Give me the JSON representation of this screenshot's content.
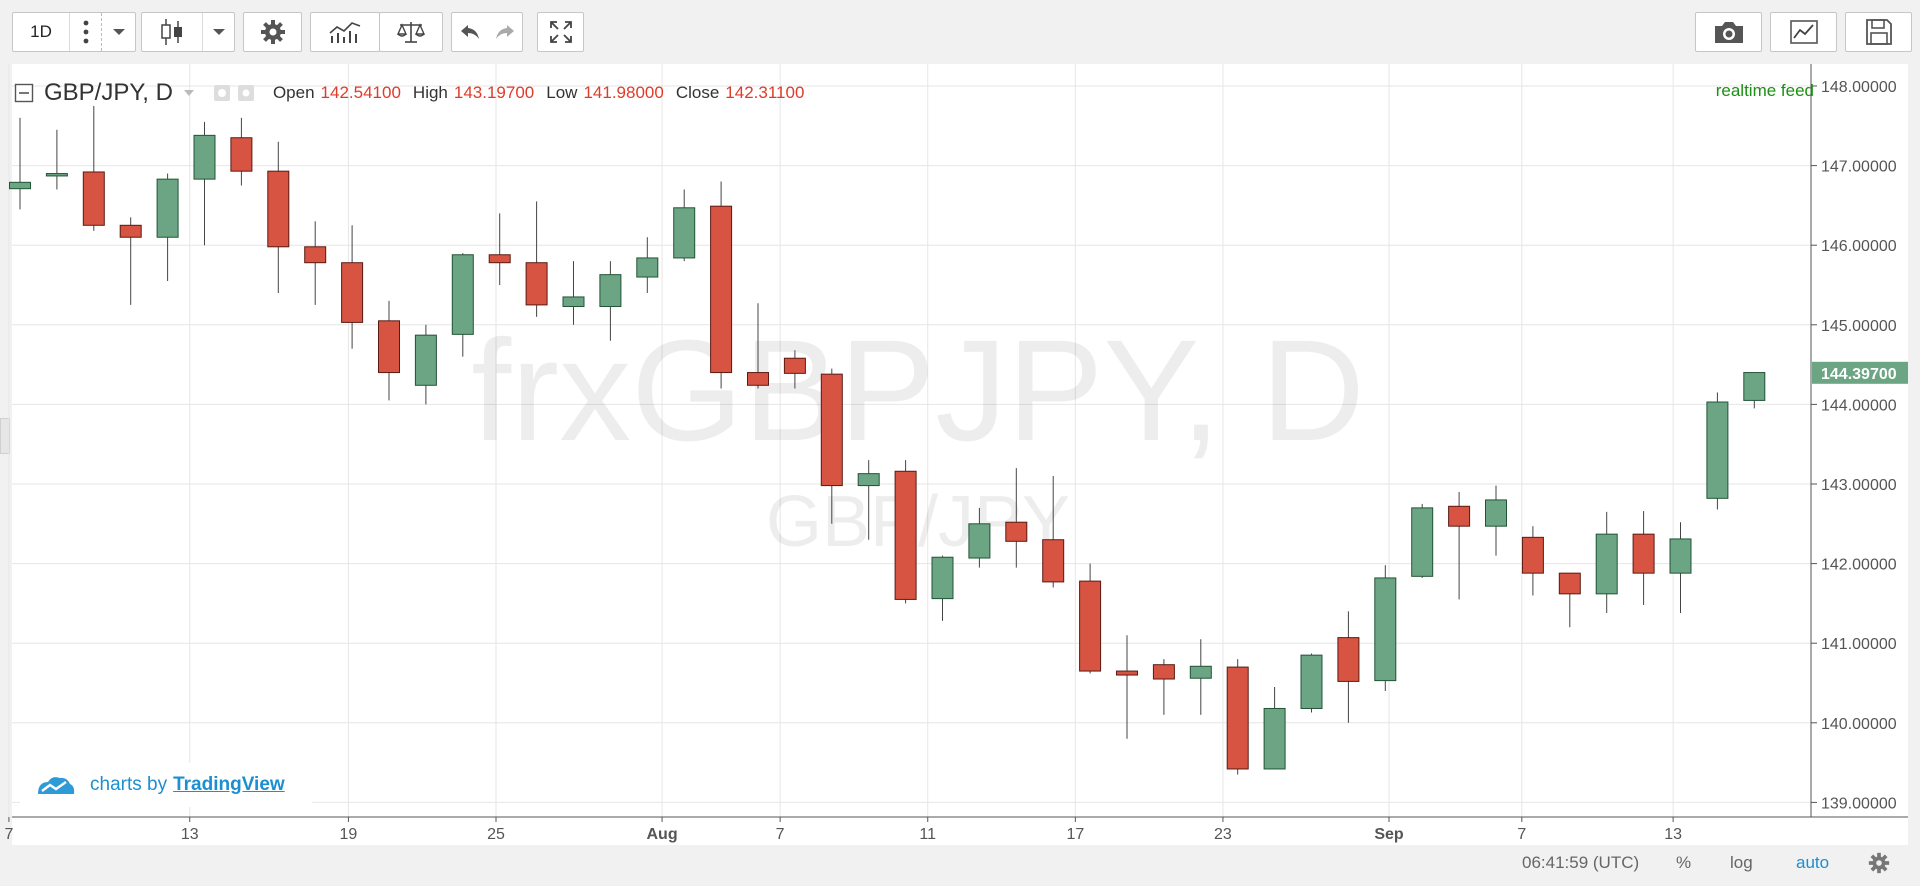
{
  "toolbar": {
    "interval": "1D"
  },
  "legend": {
    "symbol": "GBP/JPY, D",
    "open_label": "Open",
    "open_value": "142.54100",
    "high_label": "High",
    "high_value": "143.19700",
    "low_label": "Low",
    "low_value": "141.98000",
    "close_label": "Close",
    "close_value": "142.31100"
  },
  "feed_label": "realtime feed",
  "watermark": {
    "big": "frxGBPJPY, D",
    "small": "GBP/JPY"
  },
  "branding": {
    "prefix": "charts by",
    "link": "TradingView"
  },
  "status": {
    "time": "06:41:59 (UTC)",
    "percent": "%",
    "log": "log",
    "auto": "auto"
  },
  "colors": {
    "up": "#6ba583",
    "down": "#d75442",
    "up_border": "#225437",
    "down_border": "#5b1a13",
    "feed": "#1c8f14",
    "accent": "#1c8fd0"
  },
  "chart_data": {
    "type": "candlestick",
    "symbol": "GBP/JPY",
    "interval": "D",
    "ylim": [
      138.9,
      148.1
    ],
    "y_ticks": [
      "148.00000",
      "147.00000",
      "146.00000",
      "145.00000",
      "144.00000",
      "143.00000",
      "142.00000",
      "141.00000",
      "140.00000",
      "139.00000"
    ],
    "x_ticks": [
      "7",
      "13",
      "19",
      "25",
      "Aug",
      "7",
      "11",
      "17",
      "23",
      "Sep",
      "7",
      "13"
    ],
    "last_price": "144.39700",
    "candles": [
      {
        "o": 146.71,
        "h": 147.6,
        "l": 146.45,
        "c": 146.79
      },
      {
        "o": 146.87,
        "h": 147.45,
        "l": 146.7,
        "c": 146.9
      },
      {
        "o": 146.92,
        "h": 147.75,
        "l": 146.18,
        "c": 146.25
      },
      {
        "o": 146.25,
        "h": 146.35,
        "l": 145.25,
        "c": 146.1
      },
      {
        "o": 146.1,
        "h": 146.9,
        "l": 145.55,
        "c": 146.83
      },
      {
        "o": 146.83,
        "h": 147.55,
        "l": 146.0,
        "c": 147.38
      },
      {
        "o": 147.35,
        "h": 147.6,
        "l": 146.75,
        "c": 146.93
      },
      {
        "o": 146.93,
        "h": 147.3,
        "l": 145.4,
        "c": 145.98
      },
      {
        "o": 145.98,
        "h": 146.3,
        "l": 145.25,
        "c": 145.78
      },
      {
        "o": 145.78,
        "h": 146.25,
        "l": 144.7,
        "c": 145.03
      },
      {
        "o": 145.05,
        "h": 145.3,
        "l": 144.05,
        "c": 144.4
      },
      {
        "o": 144.24,
        "h": 145.0,
        "l": 144.0,
        "c": 144.87
      },
      {
        "o": 144.88,
        "h": 145.9,
        "l": 144.6,
        "c": 145.88
      },
      {
        "o": 145.88,
        "h": 146.4,
        "l": 145.5,
        "c": 145.78
      },
      {
        "o": 145.78,
        "h": 146.55,
        "l": 145.1,
        "c": 145.25
      },
      {
        "o": 145.23,
        "h": 145.8,
        "l": 145.0,
        "c": 145.35
      },
      {
        "o": 145.23,
        "h": 145.8,
        "l": 144.8,
        "c": 145.63
      },
      {
        "o": 145.6,
        "h": 146.1,
        "l": 145.4,
        "c": 145.84
      },
      {
        "o": 145.84,
        "h": 146.7,
        "l": 145.8,
        "c": 146.47
      },
      {
        "o": 146.49,
        "h": 146.8,
        "l": 144.2,
        "c": 144.4
      },
      {
        "o": 144.4,
        "h": 145.27,
        "l": 144.2,
        "c": 144.24
      },
      {
        "o": 144.58,
        "h": 144.68,
        "l": 144.2,
        "c": 144.39
      },
      {
        "o": 144.38,
        "h": 144.45,
        "l": 142.5,
        "c": 142.98
      },
      {
        "o": 142.98,
        "h": 143.3,
        "l": 142.3,
        "c": 143.13
      },
      {
        "o": 143.16,
        "h": 143.3,
        "l": 141.5,
        "c": 141.55
      },
      {
        "o": 141.56,
        "h": 142.1,
        "l": 141.28,
        "c": 142.08
      },
      {
        "o": 142.07,
        "h": 142.7,
        "l": 141.95,
        "c": 142.5
      },
      {
        "o": 142.52,
        "h": 143.2,
        "l": 141.95,
        "c": 142.28
      },
      {
        "o": 142.3,
        "h": 143.1,
        "l": 141.7,
        "c": 141.77
      },
      {
        "o": 141.78,
        "h": 142.0,
        "l": 140.62,
        "c": 140.65
      },
      {
        "o": 140.65,
        "h": 141.1,
        "l": 139.8,
        "c": 140.6
      },
      {
        "o": 140.73,
        "h": 140.8,
        "l": 140.1,
        "c": 140.55
      },
      {
        "o": 140.56,
        "h": 141.05,
        "l": 140.1,
        "c": 140.71
      },
      {
        "o": 140.7,
        "h": 140.8,
        "l": 139.35,
        "c": 139.42
      },
      {
        "o": 139.42,
        "h": 140.45,
        "l": 139.42,
        "c": 140.18
      },
      {
        "o": 140.18,
        "h": 140.87,
        "l": 140.13,
        "c": 140.85
      },
      {
        "o": 141.07,
        "h": 141.4,
        "l": 140.0,
        "c": 140.52
      },
      {
        "o": 140.53,
        "h": 141.98,
        "l": 140.4,
        "c": 141.82
      },
      {
        "o": 141.84,
        "h": 142.75,
        "l": 141.82,
        "c": 142.7
      },
      {
        "o": 142.72,
        "h": 142.9,
        "l": 141.55,
        "c": 142.47
      },
      {
        "o": 142.47,
        "h": 142.98,
        "l": 142.1,
        "c": 142.8
      },
      {
        "o": 142.33,
        "h": 142.47,
        "l": 141.6,
        "c": 141.88
      },
      {
        "o": 141.88,
        "h": 141.88,
        "l": 141.2,
        "c": 141.62
      },
      {
        "o": 141.62,
        "h": 142.65,
        "l": 141.38,
        "c": 142.37
      },
      {
        "o": 142.37,
        "h": 142.66,
        "l": 141.48,
        "c": 141.88
      },
      {
        "o": 141.88,
        "h": 142.52,
        "l": 141.38,
        "c": 142.31
      },
      {
        "o": 142.82,
        "h": 144.15,
        "l": 142.68,
        "c": 144.03
      },
      {
        "o": 144.05,
        "h": 144.4,
        "l": 143.95,
        "c": 144.4
      }
    ]
  }
}
